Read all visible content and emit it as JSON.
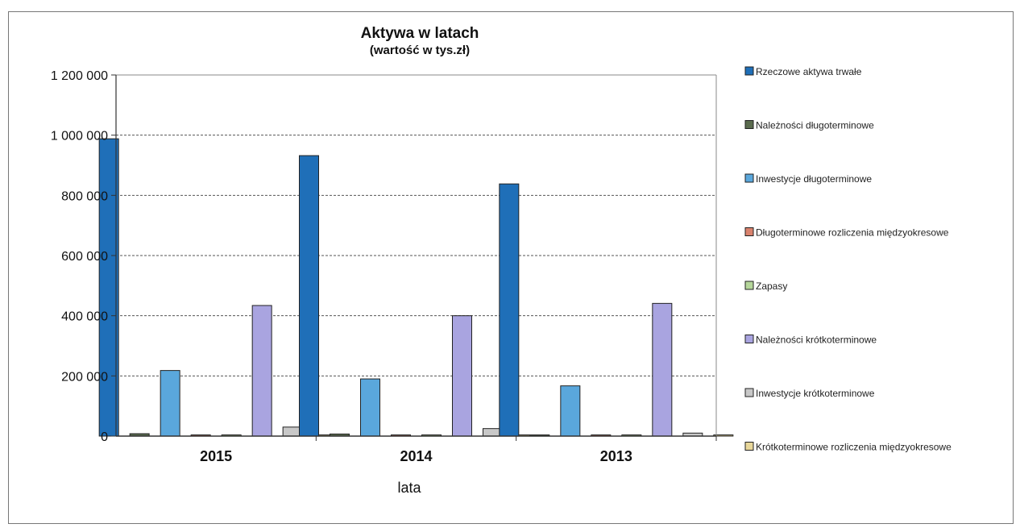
{
  "chart_data": {
    "type": "bar",
    "title": "Aktywa w latach",
    "subtitle": "(wartość w tys.zł)",
    "xlabel": "lata",
    "ylabel": "",
    "categories": [
      "2015",
      "2014",
      "2013"
    ],
    "ylim": [
      0,
      1200000
    ],
    "yticks": [
      0,
      200000,
      400000,
      600000,
      800000,
      1000000,
      1200000
    ],
    "ytick_labels": [
      "0",
      "200 000",
      "400 000",
      "600 000",
      "800 000",
      "1 000 000",
      "1 200 000"
    ],
    "grid": true,
    "legend_position": "right",
    "series": [
      {
        "name": "Rzeczowe aktywa trwałe",
        "color": "#1f6fb8",
        "values": [
          988000,
          932000,
          838000
        ]
      },
      {
        "name": "Należności długoterminowe",
        "color": "#5a6b4e",
        "values": [
          8000,
          7000,
          2000
        ]
      },
      {
        "name": "Inwestycje długoterminowe",
        "color": "#5aa7dc",
        "values": [
          218000,
          190000,
          167000
        ]
      },
      {
        "name": "Długoterminowe rozliczenia międzyokresowe",
        "color": "#d9826d",
        "values": [
          1000,
          1000,
          1000
        ]
      },
      {
        "name": "Zapasy",
        "color": "#b5d69a",
        "values": [
          2000,
          1000,
          1000
        ]
      },
      {
        "name": "Należności krótkoterminowe",
        "color": "#a9a4e0",
        "values": [
          434000,
          400000,
          441000
        ]
      },
      {
        "name": "Inwestycje krótkoterminowe",
        "color": "#c8c8c8",
        "values": [
          30000,
          25000,
          10000
        ]
      },
      {
        "name": "Krótkoterminowe rozliczenia międzyokresowe",
        "color": "#e8d79a",
        "values": [
          1000,
          1000,
          1000
        ]
      }
    ]
  }
}
